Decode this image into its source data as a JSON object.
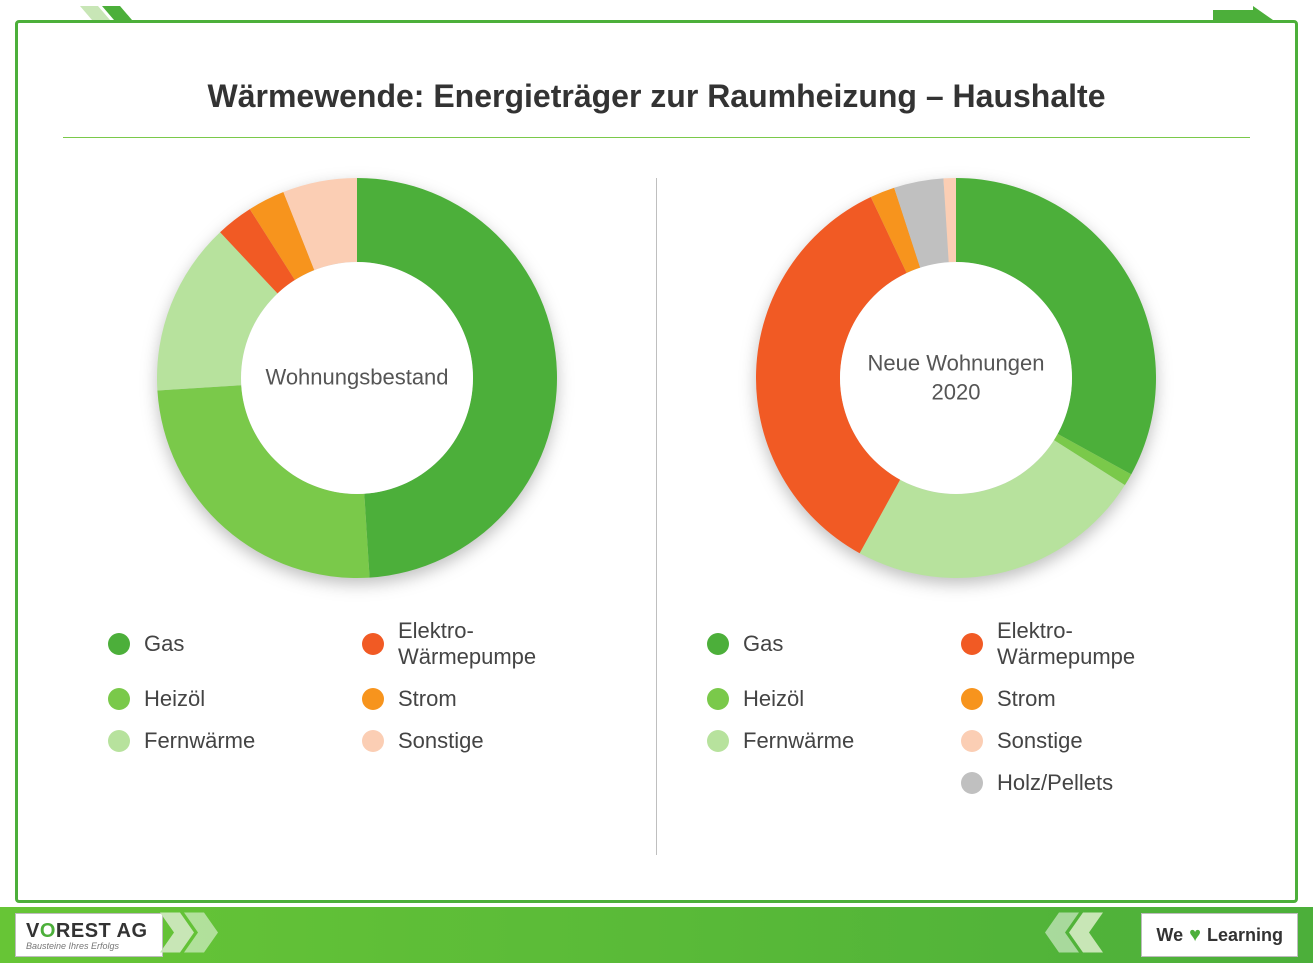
{
  "title": "Wärmewende: Energieträger zur Raumheizung – Haushalte",
  "frame": {
    "border_color": "#4caf3a",
    "background": "#ffffff"
  },
  "divider_color": "#bfbfbf",
  "title_underline_color": "#7ac94a",
  "charts": [
    {
      "type": "donut",
      "center_label": "Wohnungsbestand",
      "inner_radius_pct": 58,
      "slices": [
        {
          "label": "Gas",
          "value": 49,
          "color": "#4caf3a"
        },
        {
          "label": "Heizöl",
          "value": 25,
          "color": "#7ac94a"
        },
        {
          "label": "Fernwärme",
          "value": 14,
          "color": "#b7e29d"
        },
        {
          "label": "Elektro-Wärmepumpe",
          "value": 3,
          "color": "#f15a24"
        },
        {
          "label": "Strom",
          "value": 3,
          "color": "#f7941d"
        },
        {
          "label": "Sonstige",
          "value": 6,
          "color": "#fbceb4"
        }
      ],
      "legend": [
        {
          "label": "Gas",
          "color": "#4caf3a"
        },
        {
          "label": "Elektro-Wärmepumpe",
          "color": "#f15a24"
        },
        {
          "label": "Heizöl",
          "color": "#7ac94a"
        },
        {
          "label": "Strom",
          "color": "#f7941d"
        },
        {
          "label": "Fernwärme",
          "color": "#b7e29d"
        },
        {
          "label": "Sonstige",
          "color": "#fbceb4"
        }
      ]
    },
    {
      "type": "donut",
      "center_label": "Neue Wohnungen\n2020",
      "inner_radius_pct": 58,
      "slices": [
        {
          "label": "Gas",
          "value": 33,
          "color": "#4caf3a"
        },
        {
          "label": "Heizöl",
          "value": 1,
          "color": "#7ac94a"
        },
        {
          "label": "Fernwärme",
          "value": 24,
          "color": "#b7e29d"
        },
        {
          "label": "Elektro-Wärmepumpe",
          "value": 35,
          "color": "#f15a24"
        },
        {
          "label": "Strom",
          "value": 2,
          "color": "#f7941d"
        },
        {
          "label": "Holz/Pellets",
          "value": 4,
          "color": "#c0c0c0"
        },
        {
          "label": "Sonstige",
          "value": 1,
          "color": "#fbceb4"
        }
      ],
      "legend": [
        {
          "label": "Gas",
          "color": "#4caf3a"
        },
        {
          "label": "Elektro-Wärmepumpe",
          "color": "#f15a24"
        },
        {
          "label": "Heizöl",
          "color": "#7ac94a"
        },
        {
          "label": "Strom",
          "color": "#f7941d"
        },
        {
          "label": "Fernwärme",
          "color": "#b7e29d"
        },
        {
          "label": "Sonstige",
          "color": "#fbceb4"
        },
        {
          "label": "",
          "color": null
        },
        {
          "label": "Holz/Pellets",
          "color": "#c0c0c0"
        }
      ]
    }
  ],
  "footer": {
    "logo_main_1": "V",
    "logo_main_accent": "O",
    "logo_main_2": "REST AG",
    "logo_sub": "Bausteine Ihres Erfolgs",
    "slogan_pre": "We",
    "slogan_post": "Learning",
    "bar_gradient_from": "#67c536",
    "bar_gradient_to": "#4caf3a",
    "chevron_light": "#c8e6b6",
    "chevron_dark": "#4caf3a",
    "heart_color": "#4caf3a"
  },
  "typography": {
    "title_fontsize": 32,
    "title_color": "#333333",
    "center_label_fontsize": 22,
    "center_label_color": "#555555",
    "legend_fontsize": 22,
    "legend_color": "#444444"
  }
}
